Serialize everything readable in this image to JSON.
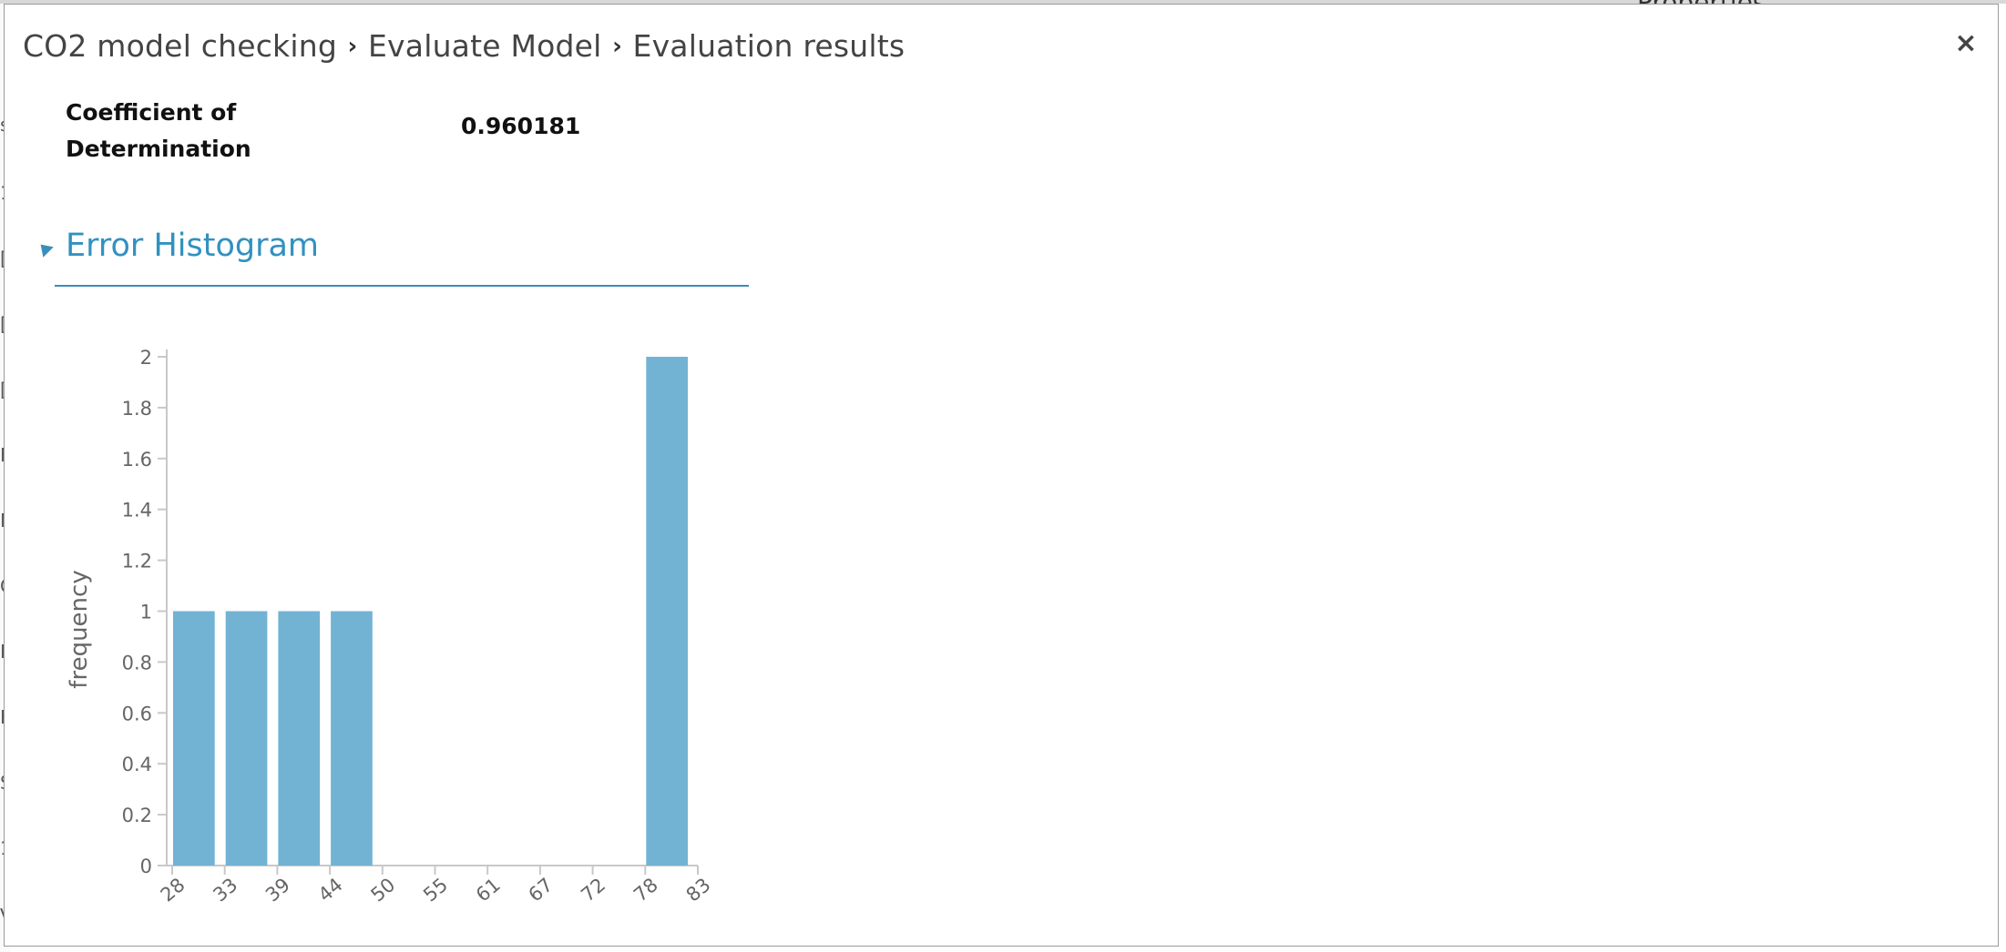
{
  "breadcrumb": {
    "items": [
      "CO2 model checking",
      "Evaluate Model",
      "Evaluation results"
    ],
    "separator": "›"
  },
  "close_label": "×",
  "metric": {
    "label": "Coefficient of Determination",
    "value": "0.960181"
  },
  "section": {
    "title": "Error Histogram",
    "accent_color": "#3191c0"
  },
  "chart_data": {
    "type": "bar",
    "ylabel": "frequency",
    "xlabel": "",
    "categories": [
      "28",
      "33",
      "39",
      "44",
      "50",
      "55",
      "61",
      "67",
      "72",
      "78",
      "83"
    ],
    "bins": [
      {
        "from": "28",
        "to": "33",
        "value": 1
      },
      {
        "from": "33",
        "to": "39",
        "value": 1
      },
      {
        "from": "39",
        "to": "44",
        "value": 1
      },
      {
        "from": "44",
        "to": "50",
        "value": 1
      },
      {
        "from": "50",
        "to": "55",
        "value": 0
      },
      {
        "from": "55",
        "to": "61",
        "value": 0
      },
      {
        "from": "61",
        "to": "67",
        "value": 0
      },
      {
        "from": "67",
        "to": "72",
        "value": 0
      },
      {
        "from": "72",
        "to": "78",
        "value": 0
      },
      {
        "from": "78",
        "to": "83",
        "value": 2
      }
    ],
    "y_ticks": [
      "0",
      "0.2",
      "0.4",
      "0.6",
      "0.8",
      "1",
      "1.2",
      "1.4",
      "1.6",
      "1.8",
      "2"
    ],
    "ylim": [
      0,
      2
    ],
    "grid": false,
    "bar_color": "#72b3d4"
  },
  "background": {
    "partial_header_text": "Properties",
    "edge_letters": [
      "s",
      "1",
      "[",
      "[",
      "[",
      "F",
      "N",
      "C",
      "F",
      "F",
      "S",
      "1",
      "V"
    ]
  }
}
